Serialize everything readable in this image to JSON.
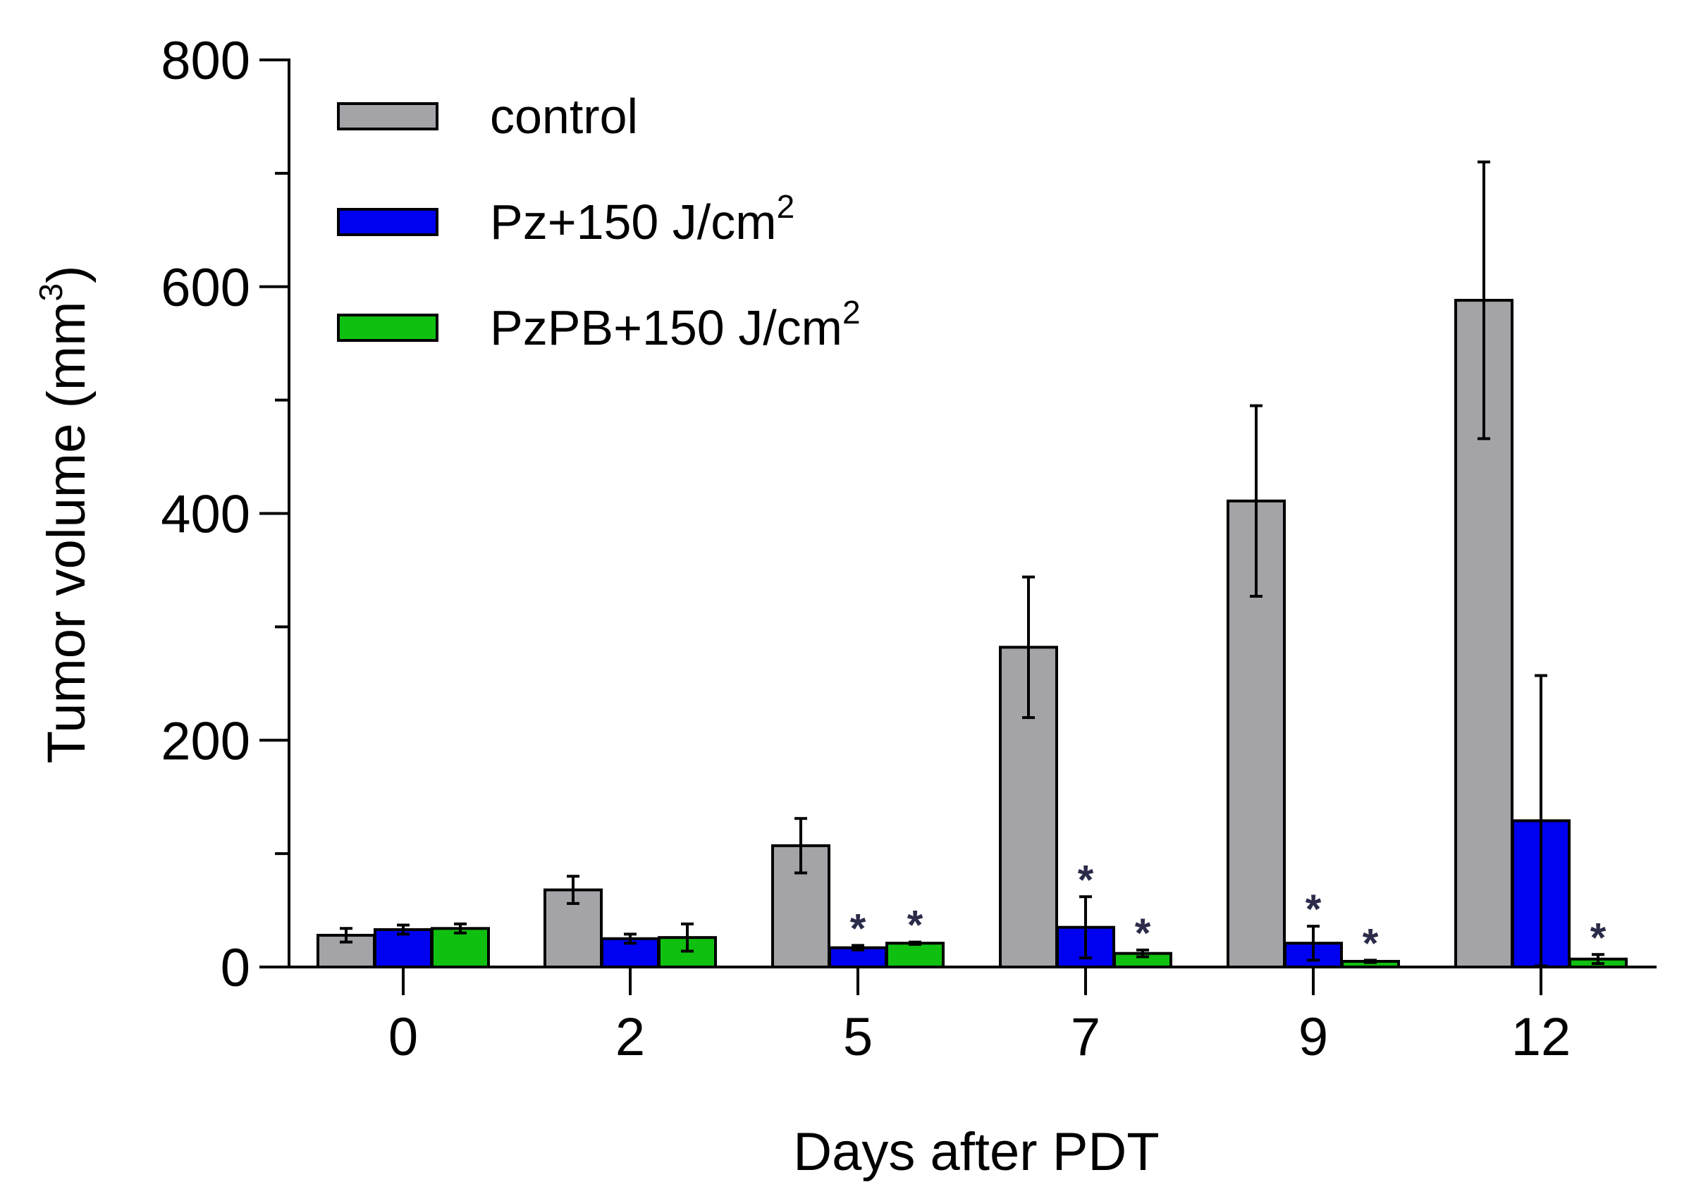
{
  "chart_data": {
    "type": "bar",
    "title": "",
    "xlabel": "Days after PDT",
    "ylabel": "Tumor volume (mm",
    "ylabel_superscript": "3",
    "ylabel_suffix": ")",
    "ylim": [
      0,
      800
    ],
    "yticks": [
      "0",
      "200",
      "400",
      "600",
      "800"
    ],
    "y_minor_step": 100,
    "grid": false,
    "legend_position": "top-left",
    "categories": [
      "0",
      "2",
      "5",
      "7",
      "9",
      "12"
    ],
    "series": [
      {
        "name": "control",
        "name_main": "control",
        "name_sup": "",
        "color": "#a4a3a8",
        "values": [
          28,
          68,
          107,
          282,
          411,
          588
        ],
        "errors": [
          6,
          12,
          24,
          62,
          84,
          122
        ],
        "significance": [
          "",
          "",
          "",
          "",
          "",
          ""
        ]
      },
      {
        "name": "Pz+150 J/cm2",
        "name_main": "Pz+150 J/cm",
        "name_sup": "2",
        "color": "#0000f0",
        "values": [
          33,
          25,
          17,
          35,
          21,
          129
        ],
        "errors": [
          4,
          4,
          2,
          27,
          15,
          128
        ],
        "significance": [
          "",
          "",
          "*",
          "*",
          "*",
          ""
        ]
      },
      {
        "name": "PzPB+150 J/cm2",
        "name_main": "PzPB+150 J/cm",
        "name_sup": "2",
        "color": "#10c010",
        "values": [
          34,
          26,
          21,
          12,
          5,
          7
        ],
        "errors": [
          4,
          12,
          1,
          3,
          1,
          4
        ],
        "significance": [
          "",
          "",
          "*",
          "*",
          "*",
          "*"
        ]
      }
    ],
    "significance_color": "#2b2b4a"
  }
}
